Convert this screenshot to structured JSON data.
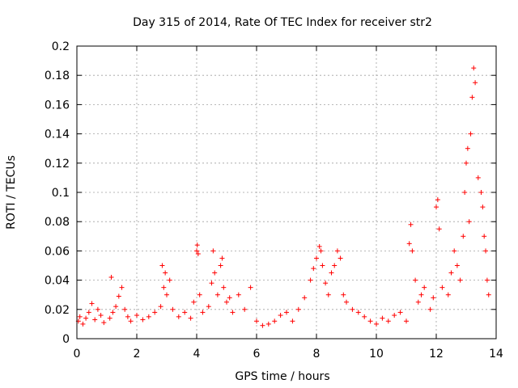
{
  "chart_data": {
    "type": "scatter",
    "title": "Day 315 of 2014, Rate Of TEC Index for receiver str2",
    "xlabel": "GPS time / hours",
    "ylabel": "ROTI / TECUs",
    "xlim": [
      0,
      14
    ],
    "ylim": [
      0,
      0.2
    ],
    "xticks": [
      0,
      2,
      4,
      6,
      8,
      10,
      12,
      14
    ],
    "yticks": [
      0,
      0.02,
      0.04,
      0.06,
      0.08,
      0.1,
      0.12,
      0.14,
      0.16,
      0.18,
      0.2
    ],
    "xtick_labels": [
      "0",
      "2",
      "4",
      "6",
      "8",
      "10",
      "12",
      "14"
    ],
    "ytick_labels": [
      "0",
      "0.02",
      "0.04",
      "0.06",
      "0.08",
      "0.1",
      "0.12",
      "0.14",
      "0.16",
      "0.18",
      "0.2"
    ],
    "grid": true,
    "marker": "+",
    "color": "#ff0000",
    "series": [
      {
        "name": "ROTI",
        "x": [
          0.05,
          0.1,
          0.2,
          0.3,
          0.4,
          0.5,
          0.6,
          0.7,
          0.8,
          0.9,
          1.1,
          1.15,
          1.2,
          1.3,
          1.4,
          1.5,
          1.6,
          1.7,
          1.8,
          2.0,
          2.2,
          2.4,
          2.6,
          2.8,
          2.85,
          2.9,
          2.95,
          3.0,
          3.1,
          3.2,
          3.4,
          3.6,
          3.8,
          3.9,
          4.0,
          4.02,
          4.05,
          4.1,
          4.2,
          4.4,
          4.5,
          4.55,
          4.6,
          4.7,
          4.8,
          4.85,
          4.9,
          5.0,
          5.1,
          5.2,
          5.4,
          5.6,
          5.8,
          6.0,
          6.2,
          6.4,
          6.6,
          6.8,
          7.0,
          7.2,
          7.4,
          7.6,
          7.8,
          7.9,
          8.0,
          8.1,
          8.15,
          8.2,
          8.3,
          8.4,
          8.5,
          8.6,
          8.7,
          8.8,
          8.9,
          9.0,
          9.2,
          9.4,
          9.6,
          9.8,
          10.0,
          10.2,
          10.4,
          10.6,
          10.8,
          11.0,
          11.1,
          11.15,
          11.2,
          11.3,
          11.4,
          11.5,
          11.6,
          11.8,
          11.9,
          12.0,
          12.05,
          12.1,
          12.2,
          12.4,
          12.5,
          12.6,
          12.7,
          12.8,
          12.9,
          12.95,
          13.0,
          13.05,
          13.1,
          13.15,
          13.2,
          13.25,
          13.3,
          13.4,
          13.5,
          13.55,
          13.6,
          13.65,
          13.7,
          13.75
        ],
        "y": [
          0.012,
          0.015,
          0.01,
          0.014,
          0.018,
          0.024,
          0.013,
          0.02,
          0.016,
          0.011,
          0.014,
          0.042,
          0.018,
          0.022,
          0.029,
          0.035,
          0.02,
          0.015,
          0.012,
          0.016,
          0.013,
          0.015,
          0.018,
          0.022,
          0.05,
          0.035,
          0.045,
          0.03,
          0.04,
          0.02,
          0.015,
          0.018,
          0.014,
          0.025,
          0.06,
          0.064,
          0.058,
          0.03,
          0.018,
          0.022,
          0.038,
          0.06,
          0.045,
          0.03,
          0.05,
          0.055,
          0.035,
          0.025,
          0.028,
          0.018,
          0.03,
          0.02,
          0.035,
          0.012,
          0.009,
          0.01,
          0.012,
          0.016,
          0.018,
          0.012,
          0.02,
          0.028,
          0.04,
          0.048,
          0.055,
          0.063,
          0.06,
          0.05,
          0.038,
          0.03,
          0.045,
          0.05,
          0.06,
          0.055,
          0.03,
          0.025,
          0.02,
          0.018,
          0.015,
          0.012,
          0.01,
          0.014,
          0.012,
          0.016,
          0.018,
          0.012,
          0.065,
          0.078,
          0.06,
          0.04,
          0.025,
          0.03,
          0.035,
          0.02,
          0.028,
          0.09,
          0.095,
          0.075,
          0.035,
          0.03,
          0.045,
          0.06,
          0.05,
          0.04,
          0.07,
          0.1,
          0.12,
          0.13,
          0.08,
          0.14,
          0.165,
          0.185,
          0.175,
          0.11,
          0.1,
          0.09,
          0.07,
          0.06,
          0.04,
          0.03
        ]
      }
    ]
  }
}
